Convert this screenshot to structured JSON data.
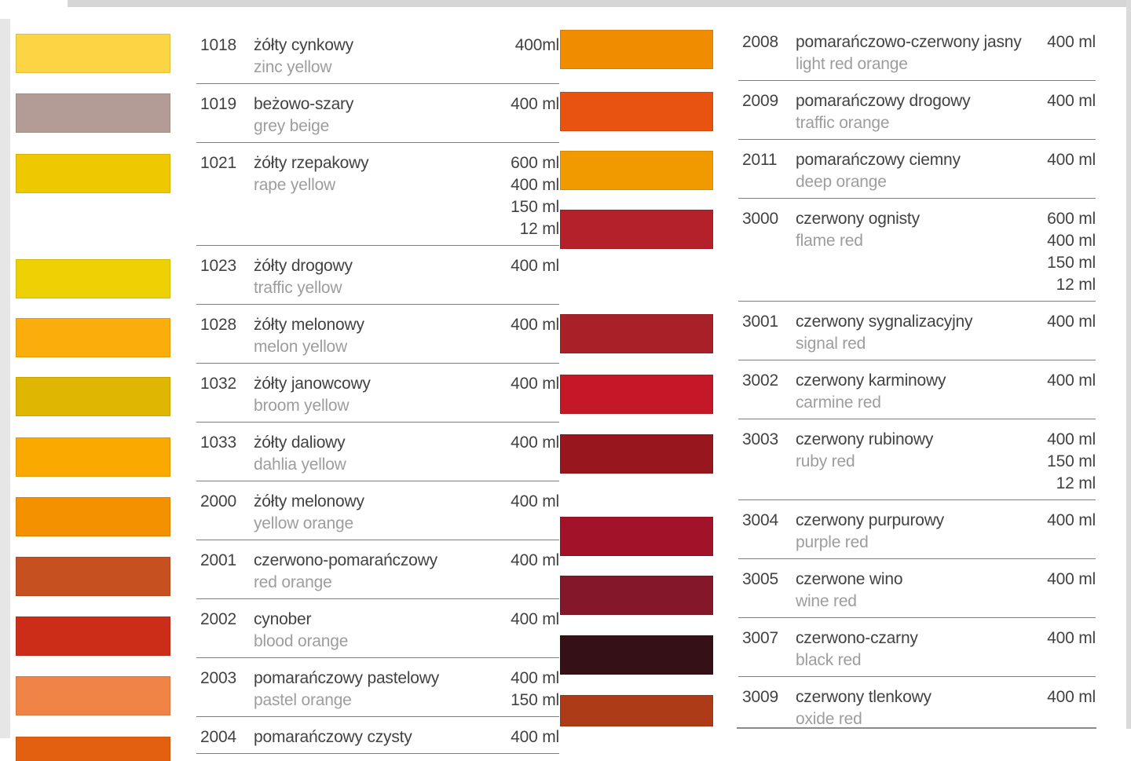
{
  "page": {
    "type": "spray paint color chart"
  },
  "divider_color": "#7e7e7e",
  "columns": [
    {
      "entries": [
        {
          "code": "1018",
          "name_pl": "żółty cynkowy",
          "name_en": "zinc yellow",
          "volumes": [
            "400ml"
          ],
          "swatch_color": "#FBD544"
        },
        {
          "code": "1019",
          "name_pl": "beżowo-szary",
          "name_en": "grey beige",
          "volumes": [
            "400 ml"
          ],
          "swatch_color": "#B29C95"
        },
        {
          "code": "1021",
          "name_pl": "żółty rzepakowy",
          "name_en": "rape yellow",
          "volumes": [
            "600 ml",
            "400 ml",
            "150 ml",
            "12 ml"
          ],
          "swatch_color": "#EEC800"
        },
        {
          "code": "1023",
          "name_pl": "żółty drogowy",
          "name_en": "traffic yellow",
          "volumes": [
            "400 ml"
          ],
          "swatch_color": "#EDD104"
        },
        {
          "code": "1028",
          "name_pl": "żółty melonowy",
          "name_en": "melon yellow",
          "volumes": [
            "400 ml"
          ],
          "swatch_color": "#FBAD0B"
        },
        {
          "code": "1032",
          "name_pl": "żółty janowcowy",
          "name_en": "broom yellow",
          "volumes": [
            "400 ml"
          ],
          "swatch_color": "#DFB702"
        },
        {
          "code": "1033",
          "name_pl": "żółty daliowy",
          "name_en": "dahlia yellow",
          "volumes": [
            "400 ml"
          ],
          "swatch_color": "#F9A900"
        },
        {
          "code": "2000",
          "name_pl": "żółty melonowy",
          "name_en": "yellow orange",
          "volumes": [
            "400 ml"
          ],
          "swatch_color": "#F39100"
        },
        {
          "code": "2001",
          "name_pl": "czerwono-pomarańczowy",
          "name_en": "red orange",
          "volumes": [
            "400 ml"
          ],
          "swatch_color": "#C65020"
        },
        {
          "code": "2002",
          "name_pl": "cynober",
          "name_en": "blood orange",
          "volumes": [
            "400 ml"
          ],
          "swatch_color": "#CB2D18"
        },
        {
          "code": "2003",
          "name_pl": "pomarańczowy pastelowy",
          "name_en": "pastel orange",
          "volumes": [
            "400 ml",
            "150 ml"
          ],
          "swatch_color": "#EF8446"
        },
        {
          "code": "2004",
          "name_pl": "pomarańczowy czysty",
          "name_en": "",
          "volumes": [
            "400 ml"
          ],
          "swatch_color": "#E2600F"
        }
      ]
    },
    {
      "entries": [
        {
          "code": "2008",
          "name_pl": "pomarańczowo-czerwony jasny",
          "name_en": "light red orange",
          "volumes": [
            "400 ml"
          ],
          "swatch_color": "#F08C00"
        },
        {
          "code": "2009",
          "name_pl": "pomarańczowy drogowy",
          "name_en": "traffic orange",
          "volumes": [
            "400 ml"
          ],
          "swatch_color": "#E85310"
        },
        {
          "code": "2011",
          "name_pl": "pomarańczowy ciemny",
          "name_en": "deep orange",
          "volumes": [
            "400 ml"
          ],
          "swatch_color": "#F09A00"
        },
        {
          "code": "3000",
          "name_pl": "czerwony ognisty",
          "name_en": "flame red",
          "volumes": [
            "600 ml",
            "400 ml",
            "150 ml",
            "12 ml"
          ],
          "swatch_color": "#B4212B"
        },
        {
          "code": "3001",
          "name_pl": "czerwony sygnalizacyjny",
          "name_en": "signal red",
          "volumes": [
            "400 ml"
          ],
          "swatch_color": "#A82028"
        },
        {
          "code": "3002",
          "name_pl": "czerwony karminowy",
          "name_en": "carmine red",
          "volumes": [
            "400 ml"
          ],
          "swatch_color": "#C41727"
        },
        {
          "code": "3003",
          "name_pl": "czerwony rubinowy",
          "name_en": "ruby red",
          "volumes": [
            "400 ml",
            "150 ml",
            "12 ml"
          ],
          "swatch_color": "#98161E"
        },
        {
          "code": "3004",
          "name_pl": "czerwony purpurowy",
          "name_en": "purple red",
          "volumes": [
            "400 ml"
          ],
          "swatch_color": "#A21329"
        },
        {
          "code": "3005",
          "name_pl": "czerwone wino",
          "name_en": "wine red",
          "volumes": [
            "400 ml"
          ],
          "swatch_color": "#85172A"
        },
        {
          "code": "3007",
          "name_pl": "czerwono-czarny",
          "name_en": "black red",
          "volumes": [
            "400 ml"
          ],
          "swatch_color": "#351016"
        },
        {
          "code": "3009",
          "name_pl": "czerwony tlenkowy",
          "name_en": "oxide red",
          "volumes": [
            "400 ml"
          ],
          "swatch_color": "#AE3B17"
        }
      ]
    }
  ]
}
